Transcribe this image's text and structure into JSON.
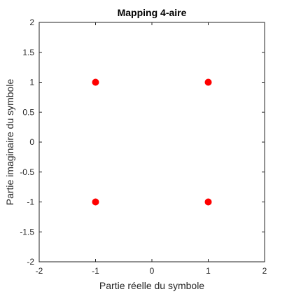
{
  "chart_data": {
    "type": "scatter",
    "title": "Mapping 4-aire",
    "xlabel": "Partie réelle du symbole",
    "ylabel": "Partie imaginaire du symbole",
    "xlim": [
      -2,
      2
    ],
    "ylim": [
      -2,
      2
    ],
    "xticks": [
      "-2",
      "-1",
      "0",
      "1",
      "2"
    ],
    "yticks": [
      "2",
      "1.5",
      "1",
      "0.5",
      "0",
      "-0.5",
      "-1",
      "-1.5",
      "-2"
    ],
    "grid": false,
    "legend": "none",
    "marker_color": "#ff0000",
    "points": [
      {
        "x": -1,
        "y": 1
      },
      {
        "x": 1,
        "y": 1
      },
      {
        "x": -1,
        "y": -1
      },
      {
        "x": 1,
        "y": -1
      }
    ]
  }
}
